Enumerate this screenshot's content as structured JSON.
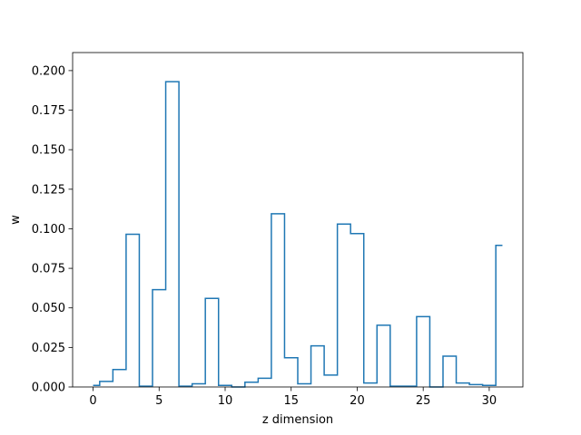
{
  "chart_data": {
    "type": "step",
    "xlabel": "z dimension",
    "ylabel": "w",
    "xlim": [
      -1.55,
      32.55
    ],
    "ylim": [
      0.0,
      0.2114
    ],
    "xticks": [
      0,
      5,
      10,
      15,
      20,
      25,
      30
    ],
    "xtick_labels": [
      "0",
      "5",
      "10",
      "15",
      "20",
      "25",
      "30"
    ],
    "yticks": [
      0.0,
      0.025,
      0.05,
      0.075,
      0.1,
      0.125,
      0.15,
      0.175,
      0.2
    ],
    "ytick_labels": [
      "0.000",
      "0.025",
      "0.050",
      "0.075",
      "0.100",
      "0.125",
      "0.150",
      "0.175",
      "0.200"
    ],
    "grid": false,
    "line_color": "#1f77b4",
    "series": [
      {
        "step_where": "mid",
        "x": [
          0,
          1,
          2,
          3,
          4,
          5,
          6,
          7,
          8,
          9,
          10,
          11,
          12,
          13,
          14,
          15,
          16,
          17,
          18,
          19,
          20,
          21,
          22,
          23,
          24,
          25,
          26,
          27,
          28,
          29,
          30,
          31
        ],
        "values": [
          0.001,
          0.0035,
          0.011,
          0.0965,
          0.0005,
          0.0615,
          0.193,
          0.0005,
          0.002,
          0.056,
          0.001,
          0.0,
          0.003,
          0.0055,
          0.1095,
          0.0185,
          0.002,
          0.026,
          0.0075,
          0.103,
          0.097,
          0.0025,
          0.039,
          0.0005,
          0.0005,
          0.0445,
          0.0,
          0.0195,
          0.0025,
          0.0015,
          0.001,
          0.0895
        ]
      }
    ]
  }
}
